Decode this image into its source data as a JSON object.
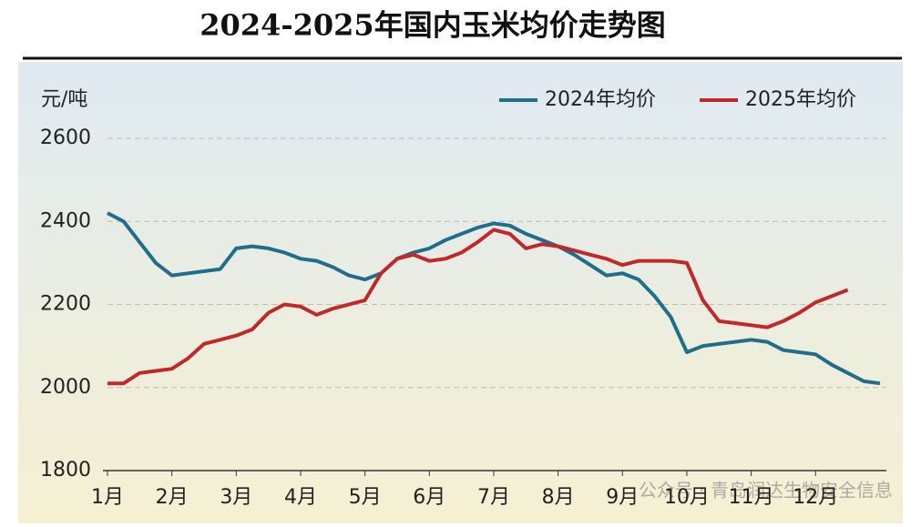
{
  "chart_data": {
    "type": "line",
    "title": "2024-2025年国内玉米均价走势图",
    "y_label": "元/吨",
    "watermark": "公众号 · 青岛润达生物安全信息",
    "x": [
      1,
      1.25,
      1.5,
      1.75,
      2,
      2.25,
      2.5,
      2.75,
      3,
      3.25,
      3.5,
      3.75,
      4,
      4.25,
      4.5,
      4.75,
      5,
      5.25,
      5.5,
      5.75,
      6,
      6.25,
      6.5,
      6.75,
      7,
      7.25,
      7.5,
      7.75,
      8,
      8.25,
      8.5,
      8.75,
      9,
      9.25,
      9.5,
      9.75,
      10,
      10.25,
      10.5,
      10.75,
      11,
      11.25,
      11.5,
      11.75,
      12,
      12.25,
      12.5,
      12.75,
      13
    ],
    "xlim": [
      1,
      13.1
    ],
    "xticks": [
      {
        "value": 1,
        "label": "1月"
      },
      {
        "value": 2,
        "label": "2月"
      },
      {
        "value": 3,
        "label": "3月"
      },
      {
        "value": 4,
        "label": "4月"
      },
      {
        "value": 5,
        "label": "5月"
      },
      {
        "value": 6,
        "label": "6月"
      },
      {
        "value": 7,
        "label": "7月"
      },
      {
        "value": 8,
        "label": "8月"
      },
      {
        "value": 9,
        "label": "9月"
      },
      {
        "value": 10,
        "label": "10月"
      },
      {
        "value": 11,
        "label": "11月"
      },
      {
        "value": 12,
        "label": "12月"
      }
    ],
    "ylim": [
      1800,
      2600
    ],
    "yticks": [
      1800,
      2000,
      2200,
      2400,
      2600
    ],
    "grid": true,
    "legend": "top-right",
    "series": [
      {
        "name": "2024年均价",
        "color": "#1f6e8c",
        "values": [
          2420,
          2400,
          2350,
          2300,
          2270,
          2275,
          2280,
          2285,
          2335,
          2340,
          2335,
          2325,
          2310,
          2305,
          2290,
          2270,
          2260,
          2275,
          2310,
          2325,
          2335,
          2355,
          2370,
          2385,
          2395,
          2390,
          2370,
          2355,
          2340,
          2320,
          2295,
          2270,
          2275,
          2260,
          2220,
          2170,
          2085,
          2100,
          2105,
          2110,
          2115,
          2110,
          2090,
          2085,
          2080,
          2055,
          2035,
          2015,
          2010
        ]
      },
      {
        "name": "2025年均价",
        "color": "#c0282a",
        "values": [
          2010,
          2010,
          2035,
          2040,
          2045,
          2070,
          2105,
          2115,
          2125,
          2140,
          2180,
          2200,
          2195,
          2175,
          2190,
          2200,
          2210,
          2275,
          2310,
          2320,
          2305,
          2310,
          2325,
          2350,
          2380,
          2370,
          2335,
          2345,
          2340,
          2330,
          2320,
          2310,
          2295,
          2305,
          2305,
          2305,
          2300,
          2210,
          2160,
          2155,
          2150,
          2145,
          2160,
          2180,
          2205,
          2220,
          2235,
          null,
          null
        ]
      }
    ]
  }
}
